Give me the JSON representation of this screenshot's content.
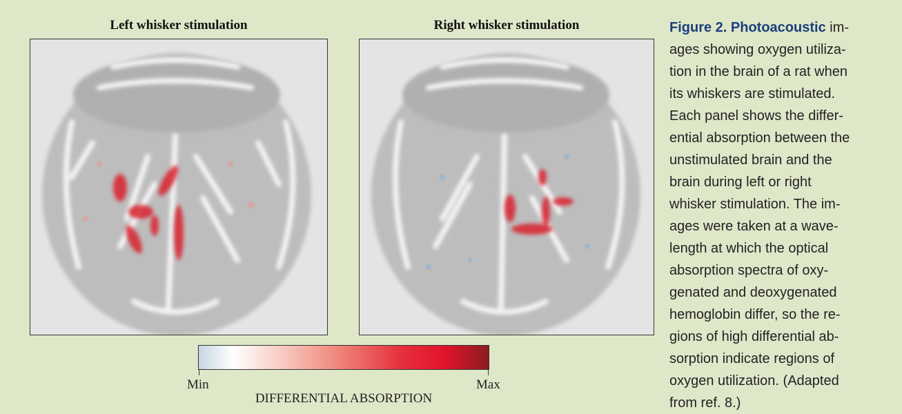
{
  "figure": {
    "panels": [
      {
        "title": "Left whisker stimulation"
      },
      {
        "title": "Right whisker stimulation"
      }
    ],
    "colorbar": {
      "min_label": "Min",
      "max_label": "Max",
      "title": "DIFFERENTIAL ABSORPTION"
    },
    "caption": {
      "label": "Figure 2. Photoacoustic",
      "lines": [
        "im-",
        "ages showing oxygen utiliza-",
        "tion in the brain of a rat when",
        "its whiskers are stimulated.",
        "Each panel shows the differ-",
        "ential absorption between the",
        "unstimulated brain and the",
        "brain during left or right",
        "whisker stimulation. The im-",
        "ages were taken at a wave-",
        "length at which the optical",
        "absorption spectra of oxy-",
        "genated and deoxygenated",
        "hemoglobin differ, so the re-",
        "gions of high differential ab-",
        "sorption indicate regions of",
        "oxygen utilization. (Adapted",
        "from ref. 8.)"
      ]
    }
  }
}
